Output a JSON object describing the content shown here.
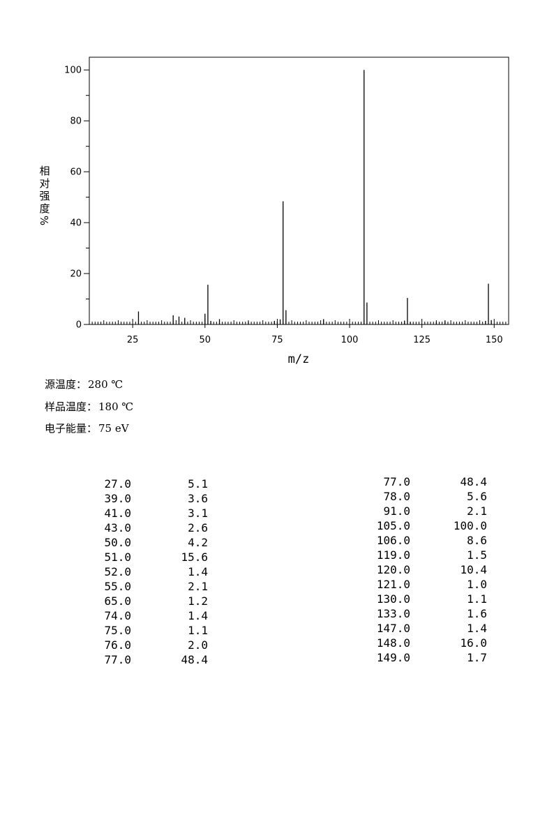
{
  "chart_data": {
    "type": "bar",
    "xlabel": "m/z",
    "ylabel": [
      "相",
      "对",
      "强",
      "度",
      "%"
    ],
    "xlim": [
      10,
      155
    ],
    "ylim": [
      0,
      105
    ],
    "x_ticks": [
      25,
      50,
      75,
      100,
      125,
      150
    ],
    "y_ticks": [
      0,
      20,
      40,
      60,
      80,
      100
    ],
    "grid": false,
    "peaks": [
      {
        "mz": 27,
        "intensity": 5.1
      },
      {
        "mz": 39,
        "intensity": 3.6
      },
      {
        "mz": 41,
        "intensity": 3.1
      },
      {
        "mz": 43,
        "intensity": 2.6
      },
      {
        "mz": 50,
        "intensity": 4.2
      },
      {
        "mz": 51,
        "intensity": 15.6
      },
      {
        "mz": 52,
        "intensity": 1.4
      },
      {
        "mz": 55,
        "intensity": 2.1
      },
      {
        "mz": 65,
        "intensity": 1.2
      },
      {
        "mz": 74,
        "intensity": 1.4
      },
      {
        "mz": 75,
        "intensity": 1.1
      },
      {
        "mz": 76,
        "intensity": 2.0
      },
      {
        "mz": 77,
        "intensity": 48.4
      },
      {
        "mz": 78,
        "intensity": 5.6
      },
      {
        "mz": 91,
        "intensity": 2.1
      },
      {
        "mz": 105,
        "intensity": 100.0
      },
      {
        "mz": 106,
        "intensity": 8.6
      },
      {
        "mz": 119,
        "intensity": 1.5
      },
      {
        "mz": 120,
        "intensity": 10.4
      },
      {
        "mz": 121,
        "intensity": 1.0
      },
      {
        "mz": 130,
        "intensity": 1.1
      },
      {
        "mz": 133,
        "intensity": 1.6
      },
      {
        "mz": 147,
        "intensity": 1.4
      },
      {
        "mz": 148,
        "intensity": 16.0
      },
      {
        "mz": 149,
        "intensity": 1.7
      }
    ]
  },
  "conditions": [
    {
      "label": "源温度：",
      "value": "280 ℃"
    },
    {
      "label": "样品温度：",
      "value": "180 ℃"
    },
    {
      "label": "电子能量：",
      "value": "75 eV"
    }
  ],
  "peak_table": {
    "left": [
      [
        "27.0",
        "5.1"
      ],
      [
        "39.0",
        "3.6"
      ],
      [
        "41.0",
        "3.1"
      ],
      [
        "43.0",
        "2.6"
      ],
      [
        "50.0",
        "4.2"
      ],
      [
        "51.0",
        "15.6"
      ],
      [
        "52.0",
        "1.4"
      ],
      [
        "55.0",
        "2.1"
      ],
      [
        "65.0",
        "1.2"
      ],
      [
        "74.0",
        "1.4"
      ],
      [
        "75.0",
        "1.1"
      ],
      [
        "76.0",
        "2.0"
      ],
      [
        "77.0",
        "48.4"
      ]
    ],
    "right": [
      [
        "77.0",
        "48.4"
      ],
      [
        "78.0",
        "5.6"
      ],
      [
        "91.0",
        "2.1"
      ],
      [
        "105.0",
        "100.0"
      ],
      [
        "106.0",
        "8.6"
      ],
      [
        "119.0",
        "1.5"
      ],
      [
        "120.0",
        "10.4"
      ],
      [
        "121.0",
        "1.0"
      ],
      [
        "130.0",
        "1.1"
      ],
      [
        "133.0",
        "1.6"
      ],
      [
        "147.0",
        "1.4"
      ],
      [
        "148.0",
        "16.0"
      ],
      [
        "149.0",
        "1.7"
      ]
    ]
  }
}
